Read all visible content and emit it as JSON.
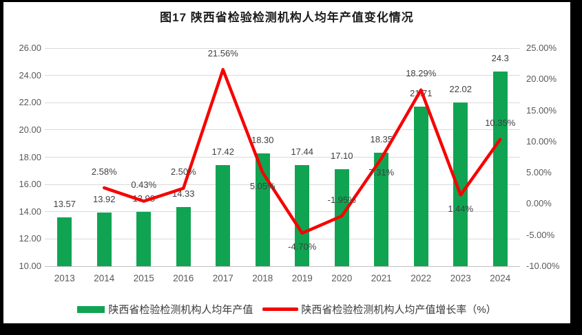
{
  "title": "图17 陕西省检验检测机构人均年产值变化情况",
  "colors": {
    "bar": "#10A452",
    "line": "#F80000",
    "grid": "#D9D9D9",
    "axis_line": "#BFBFBF",
    "axis_text": "#595959",
    "label_text": "#404040",
    "frame": "#000000",
    "background": "#FFFFFF"
  },
  "legend": [
    {
      "type": "bar",
      "label": "陕西省检验检测机构人均年产值"
    },
    {
      "type": "line",
      "label": "陕西省检验检测机构人均产值增长率（%）"
    }
  ],
  "chart_data": {
    "type": "bar",
    "subtype": "bar+line-combo",
    "title": "图17 陕西省检验检测机构人均年产值变化情况",
    "categories": [
      "2013",
      "2014",
      "2015",
      "2016",
      "2017",
      "2018",
      "2019",
      "2020",
      "2021",
      "2022",
      "2023",
      "2024"
    ],
    "series": [
      {
        "name": "陕西省检验检测机构人均年产值",
        "type": "bar",
        "axis": "left",
        "values": [
          13.57,
          13.92,
          13.98,
          14.33,
          17.42,
          18.3,
          17.44,
          17.1,
          18.35,
          21.71,
          22.02,
          24.3
        ],
        "labels": [
          "13.57",
          "13.92",
          "13.98",
          "14.33",
          "17.42",
          "18.30",
          "17.44",
          "17.10",
          "18.35",
          "21.71",
          "22.02",
          "24.3"
        ]
      },
      {
        "name": "陕西省检验检测机构人均产值增长率（%）",
        "type": "line",
        "axis": "right",
        "values": [
          null,
          2.58,
          0.43,
          2.5,
          21.56,
          5.05,
          -4.7,
          -1.95,
          7.31,
          18.29,
          1.44,
          10.35
        ],
        "labels": [
          null,
          "2.58%",
          "0.43%",
          "2.50%",
          "21.56%",
          "5.05%",
          "-4.70%",
          "-1.95%",
          "7.31%",
          "18.29%",
          "1.44%",
          "10.35%"
        ],
        "label_side": [
          null,
          "above",
          "above",
          "above",
          "above",
          "below",
          "below",
          "above",
          "below",
          "above",
          "below",
          "above"
        ]
      }
    ],
    "left_axis": {
      "min": 10,
      "max": 26,
      "step": 2,
      "tick_labels": [
        "26.00",
        "24.00",
        "22.00",
        "20.00",
        "18.00",
        "16.00",
        "14.00",
        "12.00",
        "10.00"
      ]
    },
    "right_axis": {
      "min": -10,
      "max": 25,
      "step": 5,
      "tick_labels": [
        "25.00%",
        "20.00%",
        "15.00%",
        "10.00%",
        "5.00%",
        "0.00%",
        "-5.00%",
        "-10.00%"
      ]
    },
    "grid": true,
    "legend_position": "bottom"
  }
}
